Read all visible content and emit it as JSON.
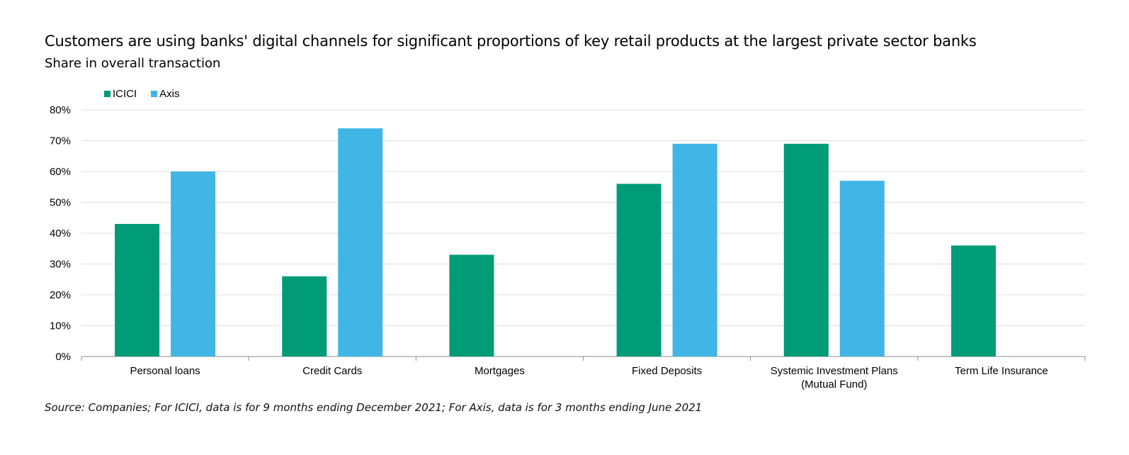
{
  "header": {
    "title": "Customers are using banks' digital channels for significant proportions of key retail products at the largest private sector banks",
    "subtitle": "Share in overall transaction"
  },
  "footer": {
    "source": "Source: Companies; For ICICI, data is for 9 months ending December 2021; For Axis, data is for 3 months ending June 2021"
  },
  "chart_data": {
    "type": "bar",
    "title": "Customers are using banks' digital channels for significant proportions of key retail products at the largest private sector banks",
    "subtitle": "Share in overall transaction",
    "categories": [
      [
        "Personal loans"
      ],
      [
        "Credit Cards"
      ],
      [
        "Mortgages"
      ],
      [
        "Fixed Deposits"
      ],
      [
        "Systemic Investment Plans",
        "(Mutual Fund)"
      ],
      [
        "Term Life Insurance"
      ]
    ],
    "series": [
      {
        "name": "ICICI",
        "color": "#009B77",
        "values": [
          43,
          26,
          33,
          56,
          69,
          36
        ]
      },
      {
        "name": "Axis",
        "color": "#41B6E6",
        "values": [
          60,
          74,
          null,
          69,
          57,
          null
        ]
      }
    ],
    "ylim": [
      0,
      80
    ],
    "yticks": [
      "0%",
      "10%",
      "20%",
      "30%",
      "40%",
      "50%",
      "60%",
      "70%",
      "80%"
    ],
    "grid": true,
    "legend_position": "top-left"
  }
}
